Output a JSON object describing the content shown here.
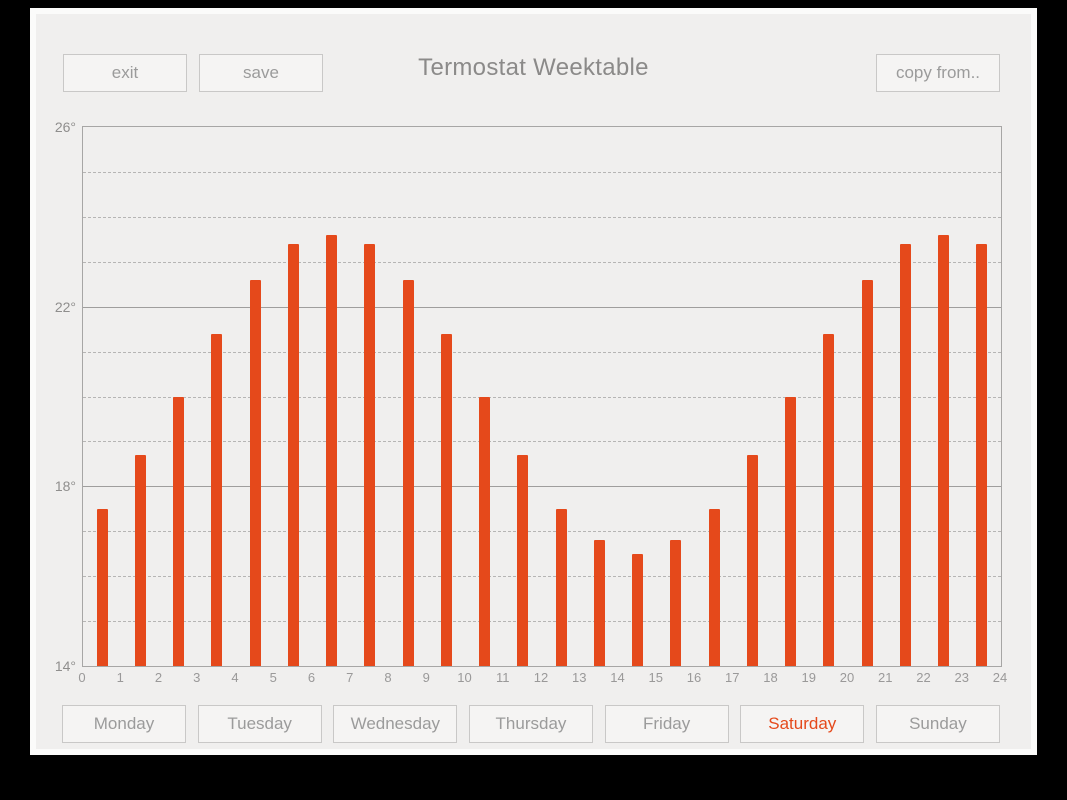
{
  "header": {
    "exit_label": "exit",
    "save_label": "save",
    "title": "Termostat Weektable",
    "copy_from_label": "copy from.."
  },
  "days": {
    "items": [
      {
        "label": "Monday",
        "selected": false
      },
      {
        "label": "Tuesday",
        "selected": false
      },
      {
        "label": "Wednesday",
        "selected": false
      },
      {
        "label": "Thursday",
        "selected": false
      },
      {
        "label": "Friday",
        "selected": false
      },
      {
        "label": "Saturday",
        "selected": true
      },
      {
        "label": "Sunday",
        "selected": false
      }
    ]
  },
  "colors": {
    "bar": "#e5491b",
    "selected_day": "#e5491b",
    "frame_bg": "#000000",
    "panel_border": "#fbfbfa",
    "panel_bg": "#f0efee",
    "muted_text": "#9b9b9b"
  },
  "chart_data": {
    "type": "bar",
    "title": "Termostat Weektable",
    "xlabel": "",
    "ylabel": "",
    "x": [
      0,
      1,
      2,
      3,
      4,
      5,
      6,
      7,
      8,
      9,
      10,
      11,
      12,
      13,
      14,
      15,
      16,
      17,
      18,
      19,
      20,
      21,
      22,
      23
    ],
    "values": [
      17.5,
      18.7,
      20.0,
      21.4,
      22.6,
      23.4,
      23.6,
      23.4,
      22.6,
      21.4,
      20.0,
      18.7,
      17.5,
      16.8,
      16.5,
      16.8,
      17.5,
      18.7,
      20.0,
      21.4,
      22.6,
      23.4,
      23.6,
      23.4
    ],
    "ylim": [
      14,
      26
    ],
    "y_ticks": [
      26,
      22,
      18,
      14
    ],
    "y_tick_labels": [
      "26°",
      "22°",
      "18°",
      "14°"
    ],
    "x_tick_labels": [
      "0",
      "1",
      "2",
      "3",
      "4",
      "5",
      "6",
      "7",
      "8",
      "9",
      "10",
      "11",
      "12",
      "13",
      "14",
      "15",
      "16",
      "17",
      "18",
      "19",
      "20",
      "21",
      "22",
      "23",
      "24"
    ],
    "grid": true,
    "minor_grid_step": 1,
    "legend": false
  }
}
